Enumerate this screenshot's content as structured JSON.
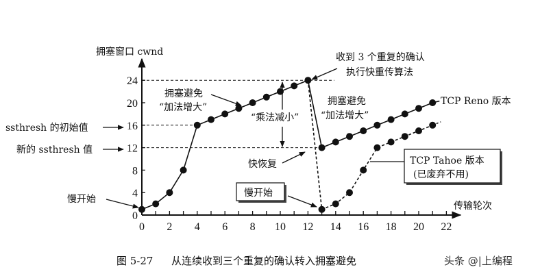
{
  "chart_data": {
    "type": "line",
    "title": "图 5-27 从连续收到三个重复的确认转入拥塞避免",
    "xlabel": "传输轮次",
    "ylabel": "拥塞窗口 cwnd",
    "xlim": [
      0,
      22
    ],
    "ylim": [
      0,
      24
    ],
    "xticks": [
      0,
      2,
      4,
      6,
      8,
      10,
      12,
      14,
      16,
      18,
      20,
      22
    ],
    "yticks": [
      0,
      4,
      8,
      12,
      16,
      20,
      24
    ],
    "grid": false,
    "series": [
      {
        "name": "TCP Reno 版本",
        "style": "solid",
        "x": [
          0,
          1,
          2,
          3,
          4,
          5,
          6,
          7,
          8,
          9,
          10,
          11,
          12,
          13,
          14,
          15,
          16,
          17,
          18,
          19,
          20,
          21
        ],
        "values": [
          1,
          2,
          4,
          8,
          16,
          17,
          18,
          19,
          20,
          21,
          22,
          23,
          24,
          12,
          13,
          14,
          15,
          16,
          17,
          18,
          19,
          20
        ]
      },
      {
        "name": "TCP Tahoe 版本 (已废弃不用)",
        "style": "dashed",
        "x": [
          12,
          13,
          14,
          15,
          16,
          17,
          18,
          19,
          20,
          21
        ],
        "values": [
          24,
          1,
          2,
          4,
          8,
          12,
          13,
          14,
          15,
          16
        ]
      }
    ],
    "reference_lines": [
      {
        "y": 24,
        "label": ""
      },
      {
        "y": 16,
        "label": "ssthresh 的初始值"
      },
      {
        "y": 12,
        "label": "新的 ssthresh 值"
      }
    ],
    "annotations": [
      "收到 3 个重复的确认",
      "执行快重传算法",
      "拥塞避免",
      "“加法增大”",
      "“乘法减小”",
      "快恢复",
      "慢开始",
      "慢开始",
      "拥塞避免",
      "“加法增大”",
      "TCP Reno 版本",
      "TCP Tahoe 版本",
      "(已废弃不用)"
    ]
  },
  "labels": {
    "ylabel": "拥塞窗口 cwnd",
    "xlabel": "传输轮次",
    "fast_retx_1": "收到 3 个重复的确认",
    "fast_retx_2": "执行快重传算法",
    "ca_left_1": "拥塞避免",
    "ca_left_2": "“加法增大”",
    "md": "“乘法减小”",
    "fast_recovery": "快恢复",
    "slow_start_left": "慢开始",
    "slow_start_box": "慢开始",
    "ca_right_1": "拥塞避免",
    "ca_right_2": "“加法增大”",
    "reno": "TCP Reno 版本",
    "tahoe_1": "TCP Tahoe 版本",
    "tahoe_2": "(已废弃不用)",
    "ssthresh_init": "ssthresh 的初始值",
    "ssthresh_new": "新的 ssthresh 值",
    "caption_num": "图 5-27",
    "caption_text": "从连续收到三个重复的确认转入拥塞避免",
    "watermark": "头条 @|上编程"
  },
  "ticks": {
    "x": [
      "0",
      "2",
      "4",
      "6",
      "8",
      "10",
      "12",
      "14",
      "16",
      "18",
      "20",
      "22"
    ],
    "y": [
      "0",
      "4",
      "8",
      "12",
      "16",
      "20",
      "24"
    ]
  }
}
